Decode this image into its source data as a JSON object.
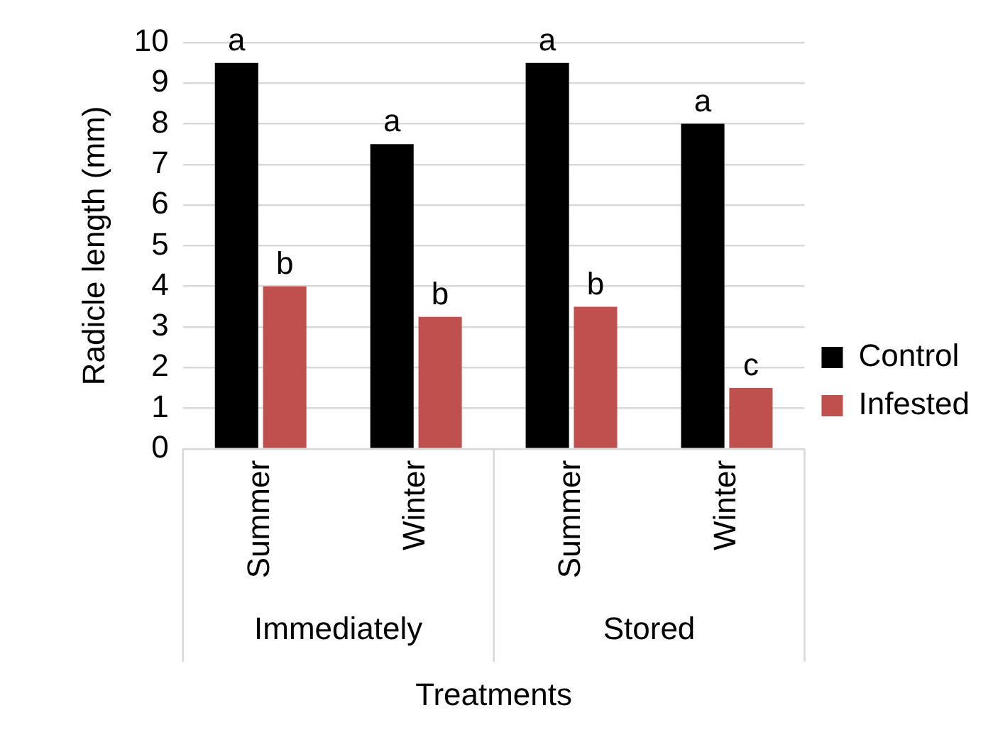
{
  "chart_data": {
    "type": "bar",
    "ylabel": "Radicle length (mm)",
    "xlabel": "Treatments",
    "categories": [
      "Summer",
      "Winter",
      "Summer",
      "Winter"
    ],
    "series": [
      {
        "name": "Control",
        "color": "#000000",
        "values": [
          9.5,
          7.5,
          9.5,
          8
        ],
        "value_labels": [
          "a",
          "a",
          "a",
          "a"
        ]
      },
      {
        "name": "Infested",
        "color": "#c0504d",
        "values": [
          4,
          3.25,
          3.5,
          1.5
        ],
        "value_labels": [
          "b",
          "b",
          "b",
          "c"
        ]
      }
    ],
    "annotations": [
      "Immediately",
      "Stored"
    ],
    "ylim": [
      0,
      10
    ],
    "yticks": [
      0,
      1,
      2,
      3,
      4,
      5,
      6,
      7,
      8,
      9,
      10
    ],
    "grid": "y",
    "legend": "right"
  }
}
